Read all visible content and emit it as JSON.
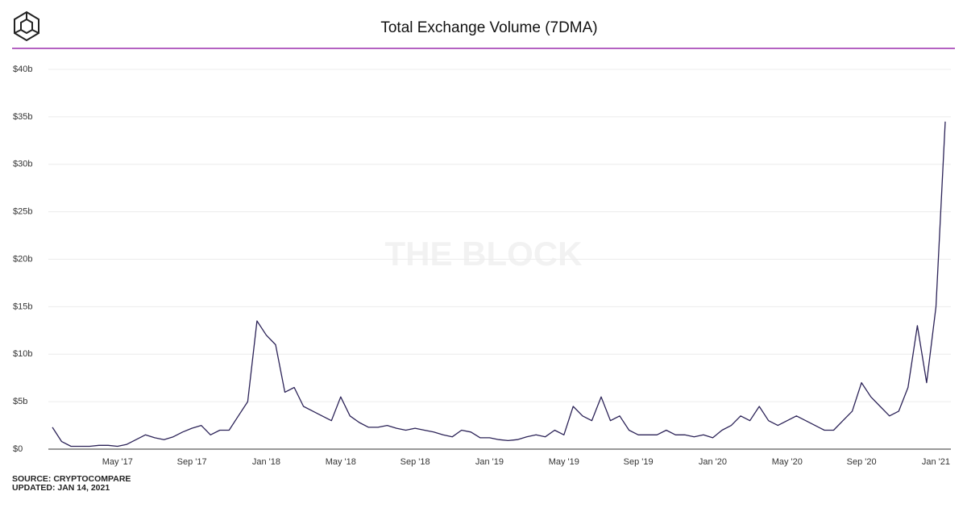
{
  "chart_data": {
    "type": "line",
    "title": "Total Exchange Volume (7DMA)",
    "watermark": "THE BLOCK",
    "source": "SOURCE: CRYPTOCOMPARE",
    "updated": "UPDATED: JAN 14, 2021",
    "color": "#2b2257",
    "grid": true,
    "categories": [
      null,
      null,
      null,
      null,
      null,
      null,
      null,
      "May '17",
      null,
      null,
      null,
      null,
      null,
      null,
      null,
      "Sep '17",
      null,
      null,
      null,
      null,
      null,
      null,
      null,
      "Jan '18",
      null,
      null,
      null,
      null,
      null,
      null,
      null,
      "May '18",
      null,
      null,
      null,
      null,
      null,
      null,
      null,
      "Sep '18",
      null,
      null,
      null,
      null,
      null,
      null,
      null,
      "Jan '19",
      null,
      null,
      null,
      null,
      null,
      null,
      null,
      "May '19",
      null,
      null,
      null,
      null,
      null,
      null,
      null,
      "Sep '19",
      null,
      null,
      null,
      null,
      null,
      null,
      null,
      "Jan '20",
      null,
      null,
      null,
      null,
      null,
      null,
      null,
      "May '20",
      null,
      null,
      null,
      null,
      null,
      null,
      null,
      "Sep '20",
      null,
      null,
      null,
      null,
      null,
      null,
      null,
      "Jan '21",
      null
    ],
    "values": [
      2.3,
      0.8,
      0.3,
      0.3,
      0.3,
      0.4,
      0.4,
      0.3,
      0.5,
      1.0,
      1.5,
      1.2,
      1.0,
      1.3,
      1.8,
      2.2,
      2.5,
      1.5,
      2.0,
      2.0,
      3.5,
      5.0,
      13.5,
      12.0,
      11.0,
      6.0,
      6.5,
      4.5,
      4.0,
      3.5,
      3.0,
      5.5,
      3.5,
      2.8,
      2.3,
      2.3,
      2.5,
      2.2,
      2.0,
      2.2,
      2.0,
      1.8,
      1.5,
      1.3,
      2.0,
      1.8,
      1.2,
      1.2,
      1.0,
      0.9,
      1.0,
      1.3,
      1.5,
      1.3,
      2.0,
      1.5,
      4.5,
      3.5,
      3.0,
      5.5,
      3.0,
      3.5,
      2.0,
      1.5,
      1.5,
      1.5,
      2.0,
      1.5,
      1.5,
      1.3,
      1.5,
      1.2,
      2.0,
      2.5,
      3.5,
      3.0,
      4.5,
      3.0,
      2.5,
      3.0,
      3.5,
      3.0,
      2.5,
      2.0,
      2.0,
      3.0,
      4.0,
      7.0,
      5.5,
      4.5,
      3.5,
      4.0,
      6.5,
      13.0,
      7.0,
      15.0,
      34.5
    ],
    "ylim": [
      0,
      40
    ],
    "yticks": [
      {
        "value": 0,
        "label": "$0"
      },
      {
        "value": 5,
        "label": "$5b"
      },
      {
        "value": 10,
        "label": "$10b"
      },
      {
        "value": 15,
        "label": "$15b"
      },
      {
        "value": 20,
        "label": "$20b"
      },
      {
        "value": 25,
        "label": "$25b"
      },
      {
        "value": 30,
        "label": "$30b"
      },
      {
        "value": 35,
        "label": "$35b"
      },
      {
        "value": 40,
        "label": "$40b"
      }
    ]
  }
}
